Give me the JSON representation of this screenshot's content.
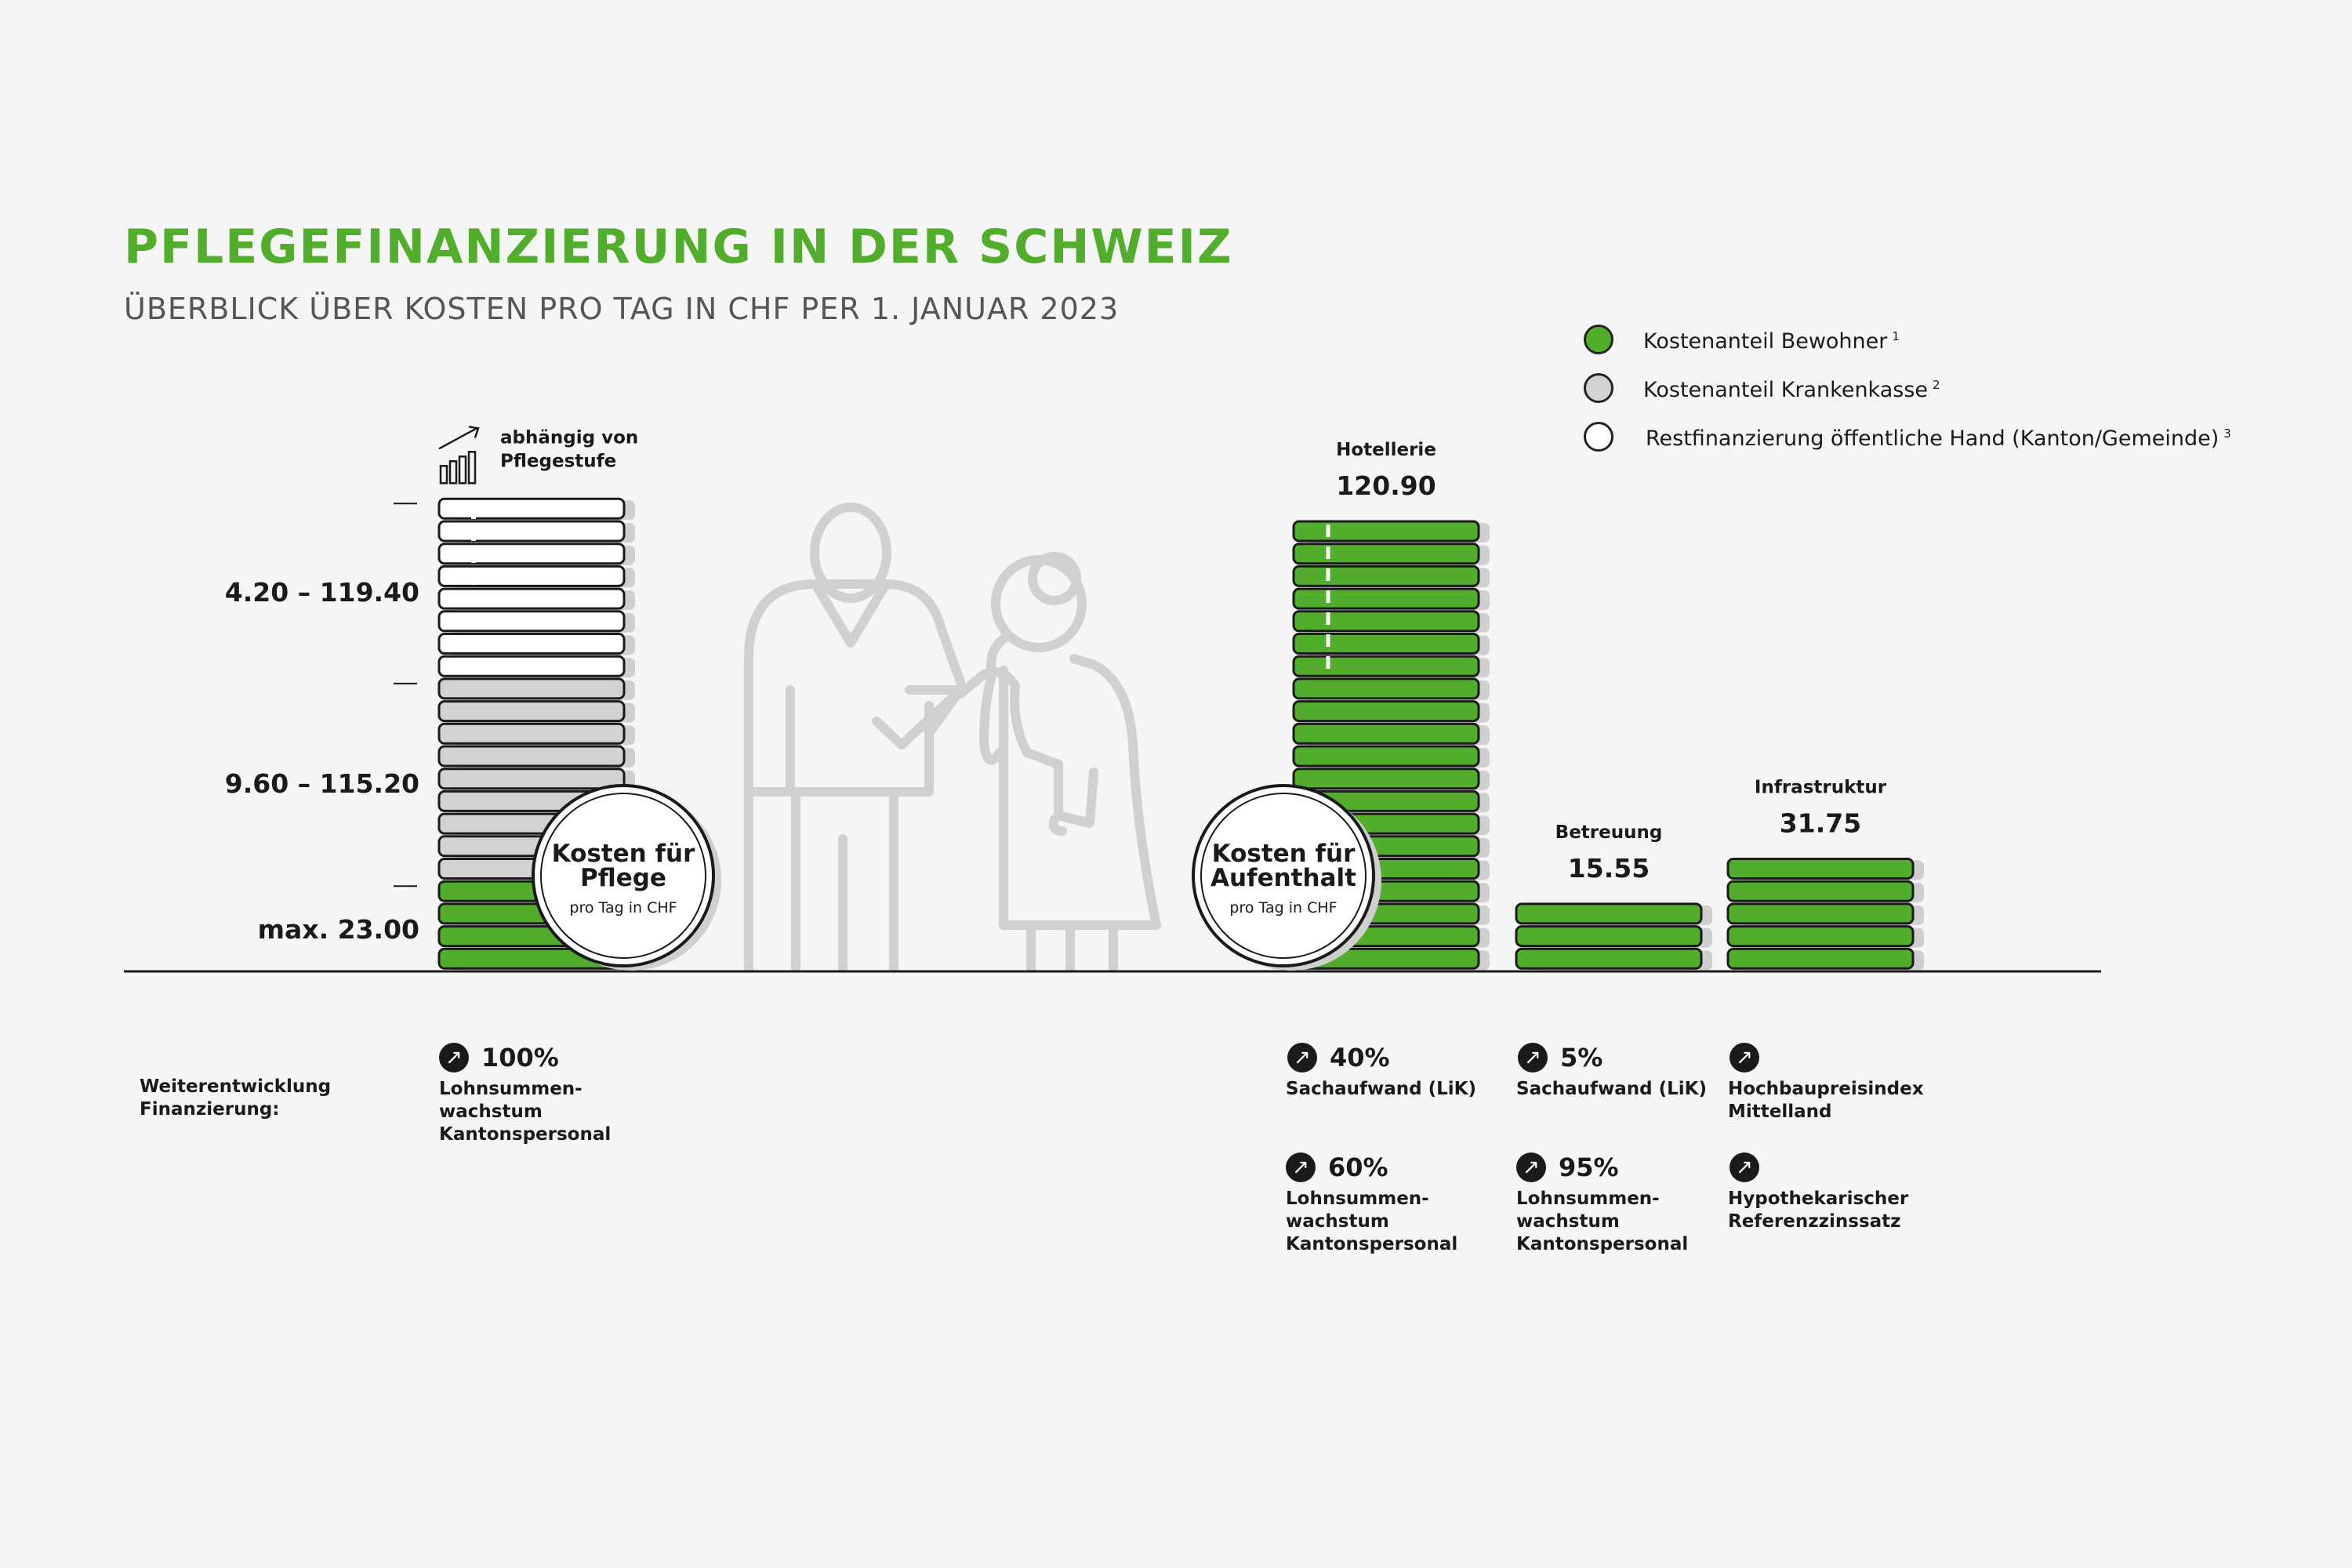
{
  "title": "PFLEGEFINANZIERUNG IN DER SCHWEIZ",
  "subtitle": "ÜBERBLICK ÜBER KOSTEN PRO TAG IN CHF PER 1. JANUAR 2023",
  "colors": {
    "green": "#52ad2d",
    "grey": "#d2d2d2",
    "white": "#ffffff",
    "outline": "#1a1a1a",
    "title": "#52ad2d"
  },
  "legend": [
    {
      "label": "Kostenanteil Bewohner",
      "note": "1",
      "color": "#52ad2d"
    },
    {
      "label": "Kostenanteil Krankenkasse",
      "note": "2",
      "color": "#d2d2d2"
    },
    {
      "label": "Restfinanzierung öffentliche Hand (Kanton/Gemeinde)",
      "note": "3",
      "color": "#ffffff"
    }
  ],
  "chart_data": [
    {
      "type": "bar",
      "title": "Kosten für Pflege",
      "unit_note": "pro Tag in CHF",
      "note_icon": "rising-bar-chart-icon",
      "note": "abhängig von Pflegestufe",
      "stack": [
        {
          "segment": "Kostenanteil Bewohner",
          "label": "max. 23.00",
          "color": "#52ad2d",
          "units": 4
        },
        {
          "segment": "Kostenanteil Krankenkasse",
          "label": "9.60 – 115.20",
          "color": "#d2d2d2",
          "units": 9
        },
        {
          "segment": "Restfinanzierung öffentliche Hand (Kanton/Gemeinde)",
          "label": "4.20 – 119.40",
          "color": "#ffffff",
          "units": 8
        }
      ]
    },
    {
      "type": "bar",
      "title": "Kosten für Aufenthalt",
      "unit_note": "pro Tag in CHF",
      "categories": [
        "Hotellerie",
        "Betreuung",
        "Infrastruktur"
      ],
      "values": [
        120.9,
        15.55,
        31.75
      ],
      "value_labels": [
        "120.90",
        "15.55",
        "31.75"
      ],
      "color": "#52ad2d",
      "units": [
        20,
        3,
        5
      ]
    }
  ],
  "weiterentwicklung": {
    "label": "Weiterentwicklung\nFinanzierung:",
    "items": [
      {
        "pct": "100%",
        "text": "Lohnsummen-\nwachstum\nKantonspersonal"
      },
      {
        "pct": "40%",
        "text": "Sachaufwand (LiK)"
      },
      {
        "pct": "60%",
        "text": "Lohnsummen-\nwachstum\nKantonspersonal"
      },
      {
        "pct": "5%",
        "text": "Sachaufwand (LiK)"
      },
      {
        "pct": "95%",
        "text": "Lohnsummen-\nwachstum\nKantonspersonal"
      },
      {
        "pct": "",
        "text": "Hochbaupreisindex\nMittelland"
      },
      {
        "pct": "",
        "text": "Hypothekarischer\nReferenzzinssatz"
      }
    ],
    "arrow_icon": "arrow-up-right-icon"
  }
}
